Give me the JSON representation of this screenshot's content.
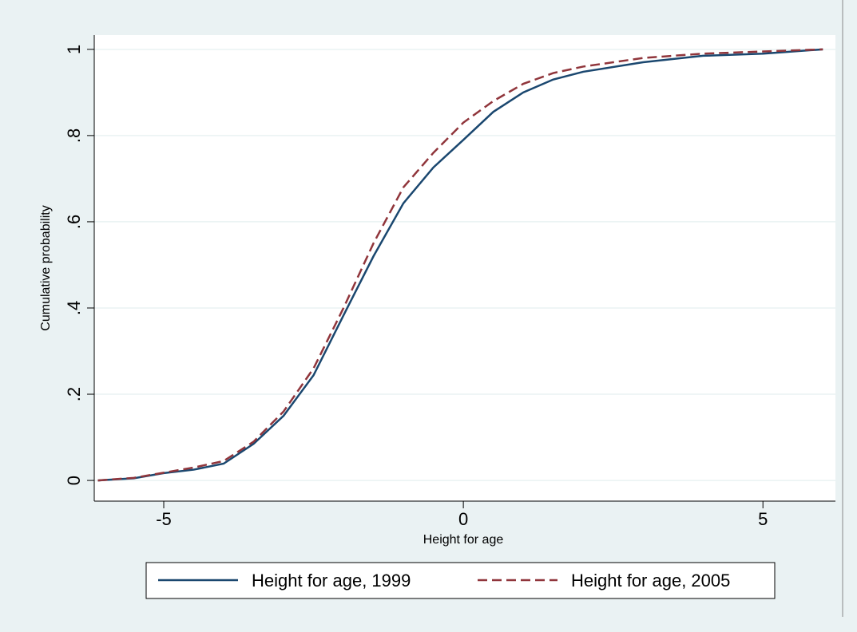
{
  "chart_data": {
    "type": "line",
    "x_label": "Height for age",
    "y_label": "Cumulative probability",
    "x": [
      -6.1,
      -5.5,
      -5,
      -4.5,
      -4,
      -3.5,
      -3,
      -2.5,
      -2,
      -1.5,
      -1,
      -0.5,
      0,
      0.5,
      1,
      1.5,
      2,
      3,
      4,
      5,
      6
    ],
    "series": [
      {
        "name": "Height for age, 1999",
        "color": "#1a476f",
        "dash": "solid",
        "values": [
          0,
          0.005,
          0.017,
          0.025,
          0.039,
          0.085,
          0.15,
          0.244,
          0.383,
          0.52,
          0.643,
          0.726,
          0.79,
          0.855,
          0.9,
          0.93,
          0.948,
          0.97,
          0.985,
          0.99,
          1
        ]
      },
      {
        "name": "Height for age, 2005",
        "color": "#90353b",
        "dash": "dashed",
        "values": [
          0,
          0.006,
          0.018,
          0.03,
          0.045,
          0.09,
          0.16,
          0.26,
          0.4,
          0.55,
          0.68,
          0.76,
          0.83,
          0.88,
          0.92,
          0.945,
          0.96,
          0.98,
          0.99,
          0.995,
          1
        ]
      }
    ],
    "xlim": [
      -6.16,
      6.21
    ],
    "ylim": [
      -0.048,
      1.033
    ],
    "xticks": [
      -5,
      0,
      5
    ],
    "yticks": [
      0,
      {
        "value": 0.2,
        "label": ".2"
      },
      {
        "value": 0.4,
        "label": ".4"
      },
      {
        "value": 0.6,
        "label": ".6"
      },
      {
        "value": 0.8,
        "label": ".8"
      },
      1
    ],
    "grid": true,
    "legend": "bottom"
  }
}
